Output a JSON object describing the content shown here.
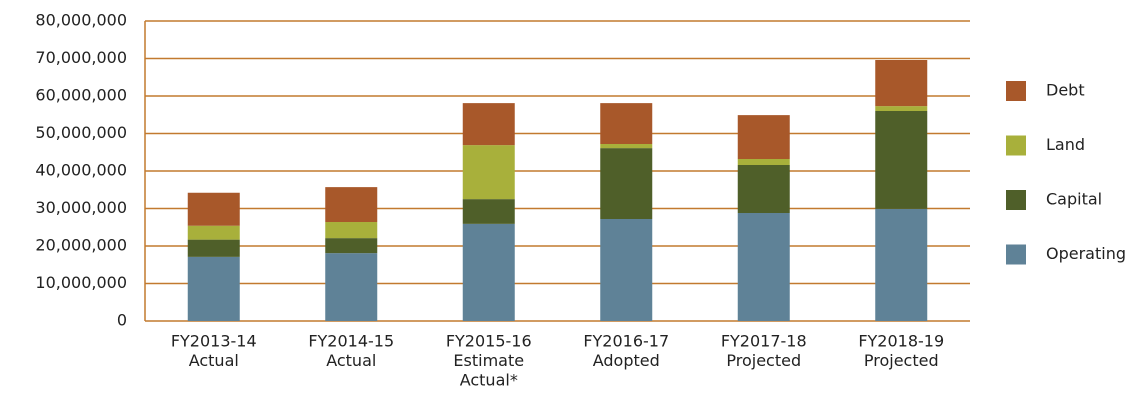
{
  "chart_data": {
    "type": "stacked_bar",
    "categories": [
      [
        "FY2013-14",
        "Actual"
      ],
      [
        "FY2014-15",
        "Actual"
      ],
      [
        "FY2015-16",
        "Estimate",
        "Actual*"
      ],
      [
        "FY2016-17",
        "Adopted"
      ],
      [
        "FY2017-18",
        "Projected"
      ],
      [
        "FY2018-19",
        "Projected"
      ]
    ],
    "series": [
      {
        "name": "Operating",
        "color": "#5f8297",
        "values": [
          17100000,
          18100000,
          25900000,
          27200000,
          28800000,
          29900000
        ]
      },
      {
        "name": "Capital",
        "color": "#4f5f29",
        "values": [
          4600000,
          4000000,
          6600000,
          18900000,
          12800000,
          26100000
        ]
      },
      {
        "name": "Land",
        "color": "#a8b03b",
        "values": [
          3700000,
          4300000,
          14400000,
          1100000,
          1600000,
          1300000
        ]
      },
      {
        "name": "Debt",
        "color": "#a8582a",
        "values": [
          8800000,
          9300000,
          11200000,
          10900000,
          11700000,
          12300000
        ]
      }
    ],
    "ylim": [
      0,
      80000000
    ],
    "yticks": [
      0,
      {
        "value": 10000000,
        "label": "10,000,000"
      },
      {
        "value": 20000000,
        "label": "20,000,000"
      },
      {
        "value": 30000000,
        "label": "30,000,000"
      },
      {
        "value": 40000000,
        "label": "40,000,000"
      },
      {
        "value": 50000000,
        "label": "50,000,000"
      },
      {
        "value": 60000000,
        "label": "60,000,000"
      },
      {
        "value": 70000000,
        "label": "70,000,000"
      },
      {
        "value": 80000000,
        "label": "80,000,000"
      }
    ],
    "grid": true
  }
}
